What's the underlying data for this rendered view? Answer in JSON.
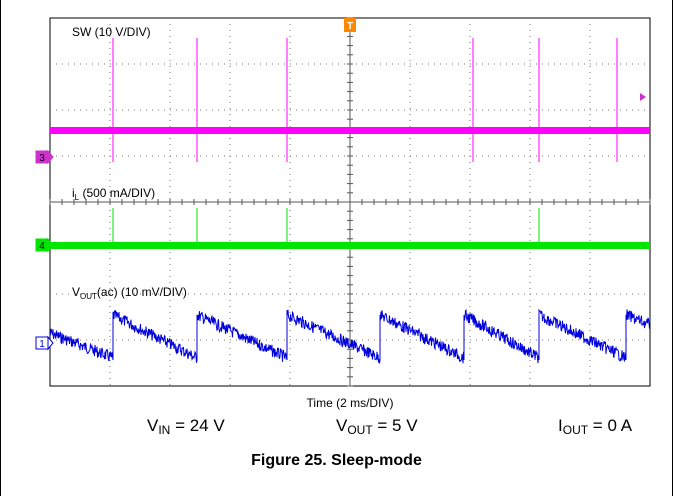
{
  "chart_data": {
    "type": "line",
    "xlabel": "Time (2 ms/DIV)",
    "x_range_ms": [
      0,
      20
    ],
    "grid": {
      "x_divisions": 10,
      "y_divisions": 8,
      "visible": true
    },
    "trigger_marker": "T",
    "channels": [
      {
        "marker": "3",
        "label": "SW (10 V/DIV)",
        "color": "#ff00ff",
        "spike_times_ms": [
          2.1,
          4.9,
          7.9,
          14.1,
          16.3,
          18.9
        ]
      },
      {
        "marker": "4",
        "label_main": "i",
        "label_sub": "L",
        "label_rest": " (500 mA/DIV)",
        "color": "#00e600",
        "spike_times_ms": [
          2.1,
          4.9,
          7.9,
          16.3
        ]
      },
      {
        "marker": "1",
        "label_main": "V",
        "label_sub": "OUT",
        "label_rest": "(ac) (10 mV/DIV)",
        "color": "#0000dd",
        "reset_times_ms": [
          2.1,
          4.9,
          7.9,
          11.0,
          13.8,
          16.3,
          19.2
        ]
      }
    ]
  },
  "conditions": [
    {
      "main": "V",
      "sub": "IN",
      "rest": " = 24 V"
    },
    {
      "main": "V",
      "sub": "OUT",
      "rest": " = 5 V"
    },
    {
      "main": "I",
      "sub": "OUT",
      "rest": " = 0 A"
    }
  ],
  "caption": "Figure 25. Sleep-mode"
}
